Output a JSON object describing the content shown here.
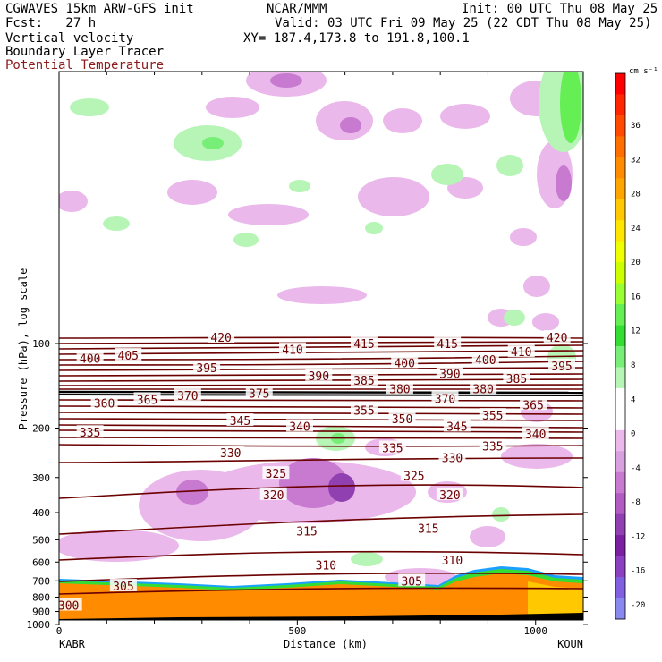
{
  "header": {
    "left_line1": "CGWAVES 15km ARW-GFS init",
    "left_line2": "Fcst:   27 h",
    "left_line3": "Vertical velocity",
    "left_line4": "Boundary Layer Tracer",
    "left_line5": "Potential Temperature",
    "center_line1": "NCAR/MMM",
    "right_line1": "Init: 00 UTC Thu 08 May 25",
    "right_line2": "Valid: 03 UTC Fri 09 May 25 (22 CDT Thu 08 May 25)",
    "right_line3": "XY= 187.4,173.8 to 191.8,100.1"
  },
  "colors": {
    "theta_contour": "#6b0000",
    "tracer_fill": "#ff8c00",
    "positive_light": "#b6f5b6",
    "negative_light": "#eab8ea",
    "negative_mid": "#c77ad0"
  },
  "chart_data": {
    "type": "cross-section",
    "xlabel": "Distance (km)",
    "ylabel": "Pressure (hPa), log scale",
    "x_start_label": "KABR",
    "x_end_label": "KOUN",
    "xlim": [
      0,
      1100
    ],
    "x_ticks": [
      0,
      500,
      1000
    ],
    "y_scale": "log",
    "y_ticks": [
      100,
      200,
      300,
      400,
      500,
      600,
      700,
      800,
      900,
      1000
    ],
    "colorbar": {
      "units": "cm s⁻¹",
      "tick_labels": [
        36,
        32,
        28,
        24,
        20,
        16,
        12,
        8,
        4,
        0,
        -4,
        -8,
        -12,
        -16,
        -20
      ],
      "colors": [
        "#ff0000",
        "#ff2600",
        "#ff4a00",
        "#ff6f00",
        "#ff8c00",
        "#ffa500",
        "#ffc800",
        "#ffe600",
        "#f0ff00",
        "#ccff00",
        "#99ff33",
        "#66ee55",
        "#33dd33",
        "#77ee77",
        "#b6f5b6",
        "#ffffff",
        "#ffffff",
        "#eab8ea",
        "#d9a0e0",
        "#c77ad0",
        "#b05cc0",
        "#9040b0",
        "#7a20a0",
        "#8a40c0",
        "#8060e0",
        "#8888ee"
      ]
    },
    "theta_contours": [
      {
        "value": 300,
        "labels": [
          {
            "x": 20,
            "p": 855
          }
        ]
      },
      {
        "value": 305,
        "labels": [
          {
            "x": 135,
            "p": 730
          },
          {
            "x": 740,
            "p": 700
          }
        ]
      },
      {
        "value": 310,
        "labels": [
          {
            "x": 560,
            "p": 615
          },
          {
            "x": 825,
            "p": 590
          }
        ]
      },
      {
        "value": 315,
        "labels": [
          {
            "x": 520,
            "p": 465
          },
          {
            "x": 775,
            "p": 455
          }
        ]
      },
      {
        "value": 320,
        "labels": [
          {
            "x": 450,
            "p": 345
          },
          {
            "x": 820,
            "p": 345
          }
        ]
      },
      {
        "value": 325,
        "labels": [
          {
            "x": 455,
            "p": 290
          },
          {
            "x": 745,
            "p": 295
          }
        ]
      },
      {
        "value": 330,
        "labels": [
          {
            "x": 360,
            "p": 245
          },
          {
            "x": 825,
            "p": 255
          }
        ]
      },
      {
        "value": 335,
        "labels": [
          {
            "x": 65,
            "p": 207
          },
          {
            "x": 700,
            "p": 235
          },
          {
            "x": 910,
            "p": 232
          }
        ]
      },
      {
        "value": 340,
        "labels": [
          {
            "x": 505,
            "p": 197
          },
          {
            "x": 1000,
            "p": 210
          }
        ]
      },
      {
        "value": 345,
        "labels": [
          {
            "x": 380,
            "p": 188
          },
          {
            "x": 835,
            "p": 197
          }
        ]
      },
      {
        "value": 350,
        "labels": [
          {
            "x": 720,
            "p": 185
          }
        ]
      },
      {
        "value": 355,
        "labels": [
          {
            "x": 640,
            "p": 173
          },
          {
            "x": 910,
            "p": 180
          }
        ]
      },
      {
        "value": 360,
        "labels": [
          {
            "x": 95,
            "p": 163
          }
        ]
      },
      {
        "value": 365,
        "labels": [
          {
            "x": 185,
            "p": 158
          },
          {
            "x": 995,
            "p": 165
          }
        ]
      },
      {
        "value": 370,
        "labels": [
          {
            "x": 270,
            "p": 153
          },
          {
            "x": 810,
            "p": 157
          }
        ]
      },
      {
        "value": 375,
        "labels": [
          {
            "x": 420,
            "p": 150
          }
        ]
      },
      {
        "value": 380,
        "labels": [
          {
            "x": 715,
            "p": 145
          },
          {
            "x": 890,
            "p": 145
          }
        ]
      },
      {
        "value": 385,
        "labels": [
          {
            "x": 640,
            "p": 135
          },
          {
            "x": 960,
            "p": 133
          }
        ]
      },
      {
        "value": 390,
        "labels": [
          {
            "x": 545,
            "p": 130
          },
          {
            "x": 820,
            "p": 128
          }
        ]
      },
      {
        "value": 395,
        "labels": [
          {
            "x": 310,
            "p": 122
          },
          {
            "x": 1055,
            "p": 120
          }
        ]
      },
      {
        "value": 400,
        "labels": [
          {
            "x": 65,
            "p": 113
          },
          {
            "x": 725,
            "p": 117
          },
          {
            "x": 895,
            "p": 114
          }
        ]
      },
      {
        "value": 405,
        "labels": [
          {
            "x": 145,
            "p": 110
          }
        ]
      },
      {
        "value": 410,
        "labels": [
          {
            "x": 490,
            "p": 105
          },
          {
            "x": 970,
            "p": 107
          }
        ]
      },
      {
        "value": 415,
        "labels": [
          {
            "x": 640,
            "p": 100
          },
          {
            "x": 815,
            "p": 100
          }
        ]
      },
      {
        "value": 420,
        "labels": [
          {
            "x": 340,
            "p": 95
          },
          {
            "x": 1045,
            "p": 95
          }
        ]
      }
    ]
  }
}
